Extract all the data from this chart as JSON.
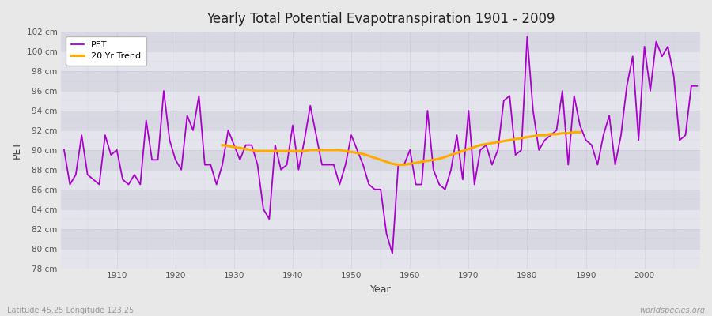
{
  "title": "Yearly Total Potential Evapotranspiration 1901 - 2009",
  "xlabel": "Year",
  "ylabel": "PET",
  "subtitle_left": "Latitude 45.25 Longitude 123.25",
  "subtitle_right": "worldspecies.org",
  "pet_color": "#aa00cc",
  "trend_color": "#ffaa00",
  "bg_color": "#e8e8e8",
  "plot_bg_color": "#e0e0e8",
  "band_color_light": "#e8e8ee",
  "band_color_dark": "#d8d8e0",
  "ylim": [
    78,
    102
  ],
  "ytick_step": 2,
  "years": [
    1901,
    1902,
    1903,
    1904,
    1905,
    1906,
    1907,
    1908,
    1909,
    1910,
    1911,
    1912,
    1913,
    1914,
    1915,
    1916,
    1917,
    1918,
    1919,
    1920,
    1921,
    1922,
    1923,
    1924,
    1925,
    1926,
    1927,
    1928,
    1929,
    1930,
    1931,
    1932,
    1933,
    1934,
    1935,
    1936,
    1937,
    1938,
    1939,
    1940,
    1941,
    1942,
    1943,
    1944,
    1945,
    1946,
    1947,
    1948,
    1949,
    1950,
    1951,
    1952,
    1953,
    1954,
    1955,
    1956,
    1957,
    1958,
    1959,
    1960,
    1961,
    1962,
    1963,
    1964,
    1965,
    1966,
    1967,
    1968,
    1969,
    1970,
    1971,
    1972,
    1973,
    1974,
    1975,
    1976,
    1977,
    1978,
    1979,
    1980,
    1981,
    1982,
    1983,
    1984,
    1985,
    1986,
    1987,
    1988,
    1989,
    1990,
    1991,
    1992,
    1993,
    1994,
    1995,
    1996,
    1997,
    1998,
    1999,
    2000,
    2001,
    2002,
    2003,
    2004,
    2005,
    2006,
    2007,
    2008,
    2009
  ],
  "pet_values": [
    90.0,
    86.5,
    87.5,
    91.5,
    87.5,
    87.0,
    86.5,
    91.5,
    89.5,
    90.0,
    87.0,
    86.5,
    87.5,
    86.5,
    93.0,
    89.0,
    89.0,
    96.0,
    91.0,
    89.0,
    88.0,
    93.5,
    92.0,
    95.5,
    88.5,
    88.5,
    86.5,
    88.5,
    92.0,
    90.5,
    89.0,
    90.5,
    90.5,
    88.5,
    84.0,
    83.0,
    90.5,
    88.0,
    88.5,
    92.5,
    88.0,
    91.0,
    94.5,
    91.5,
    88.5,
    88.5,
    88.5,
    86.5,
    88.5,
    91.5,
    90.0,
    88.5,
    86.5,
    86.0,
    86.0,
    81.5,
    79.5,
    88.5,
    88.5,
    90.0,
    86.5,
    86.5,
    94.0,
    88.0,
    86.5,
    86.0,
    88.0,
    91.5,
    87.0,
    94.0,
    86.5,
    90.0,
    90.5,
    88.5,
    90.0,
    95.0,
    95.5,
    89.5,
    90.0,
    101.5,
    94.0,
    90.0,
    91.0,
    91.5,
    92.0,
    96.0,
    88.5,
    95.5,
    92.5,
    91.0,
    90.5,
    88.5,
    91.5,
    93.5,
    88.5,
    91.5,
    96.5,
    99.5,
    91.0,
    100.5,
    96.0,
    101.0,
    99.5,
    100.5,
    97.5,
    91.0,
    91.5,
    96.5,
    96.5
  ],
  "trend_years": [
    1928,
    1929,
    1930,
    1931,
    1932,
    1933,
    1934,
    1935,
    1936,
    1937,
    1938,
    1939,
    1940,
    1941,
    1942,
    1943,
    1944,
    1945,
    1946,
    1947,
    1948,
    1949,
    1950,
    1951,
    1952,
    1953,
    1954,
    1955,
    1956,
    1957,
    1958,
    1959,
    1960,
    1961,
    1962,
    1963,
    1964,
    1965,
    1966,
    1967,
    1968,
    1969,
    1970,
    1971,
    1972,
    1973,
    1974,
    1975,
    1976,
    1977,
    1978,
    1979,
    1980,
    1981,
    1982,
    1983,
    1984,
    1985,
    1986,
    1987,
    1988,
    1989
  ],
  "trend_values": [
    90.5,
    90.4,
    90.3,
    90.2,
    90.1,
    90.0,
    89.9,
    89.9,
    89.9,
    89.9,
    89.9,
    89.9,
    89.9,
    89.9,
    89.9,
    90.0,
    90.0,
    90.0,
    90.0,
    90.0,
    90.0,
    89.9,
    89.8,
    89.7,
    89.6,
    89.4,
    89.2,
    89.0,
    88.8,
    88.6,
    88.5,
    88.5,
    88.6,
    88.7,
    88.8,
    88.9,
    89.0,
    89.1,
    89.3,
    89.5,
    89.7,
    89.9,
    90.1,
    90.3,
    90.5,
    90.6,
    90.7,
    90.8,
    90.9,
    91.0,
    91.1,
    91.2,
    91.3,
    91.4,
    91.5,
    91.5,
    91.6,
    91.6,
    91.7,
    91.7,
    91.8,
    91.8
  ]
}
